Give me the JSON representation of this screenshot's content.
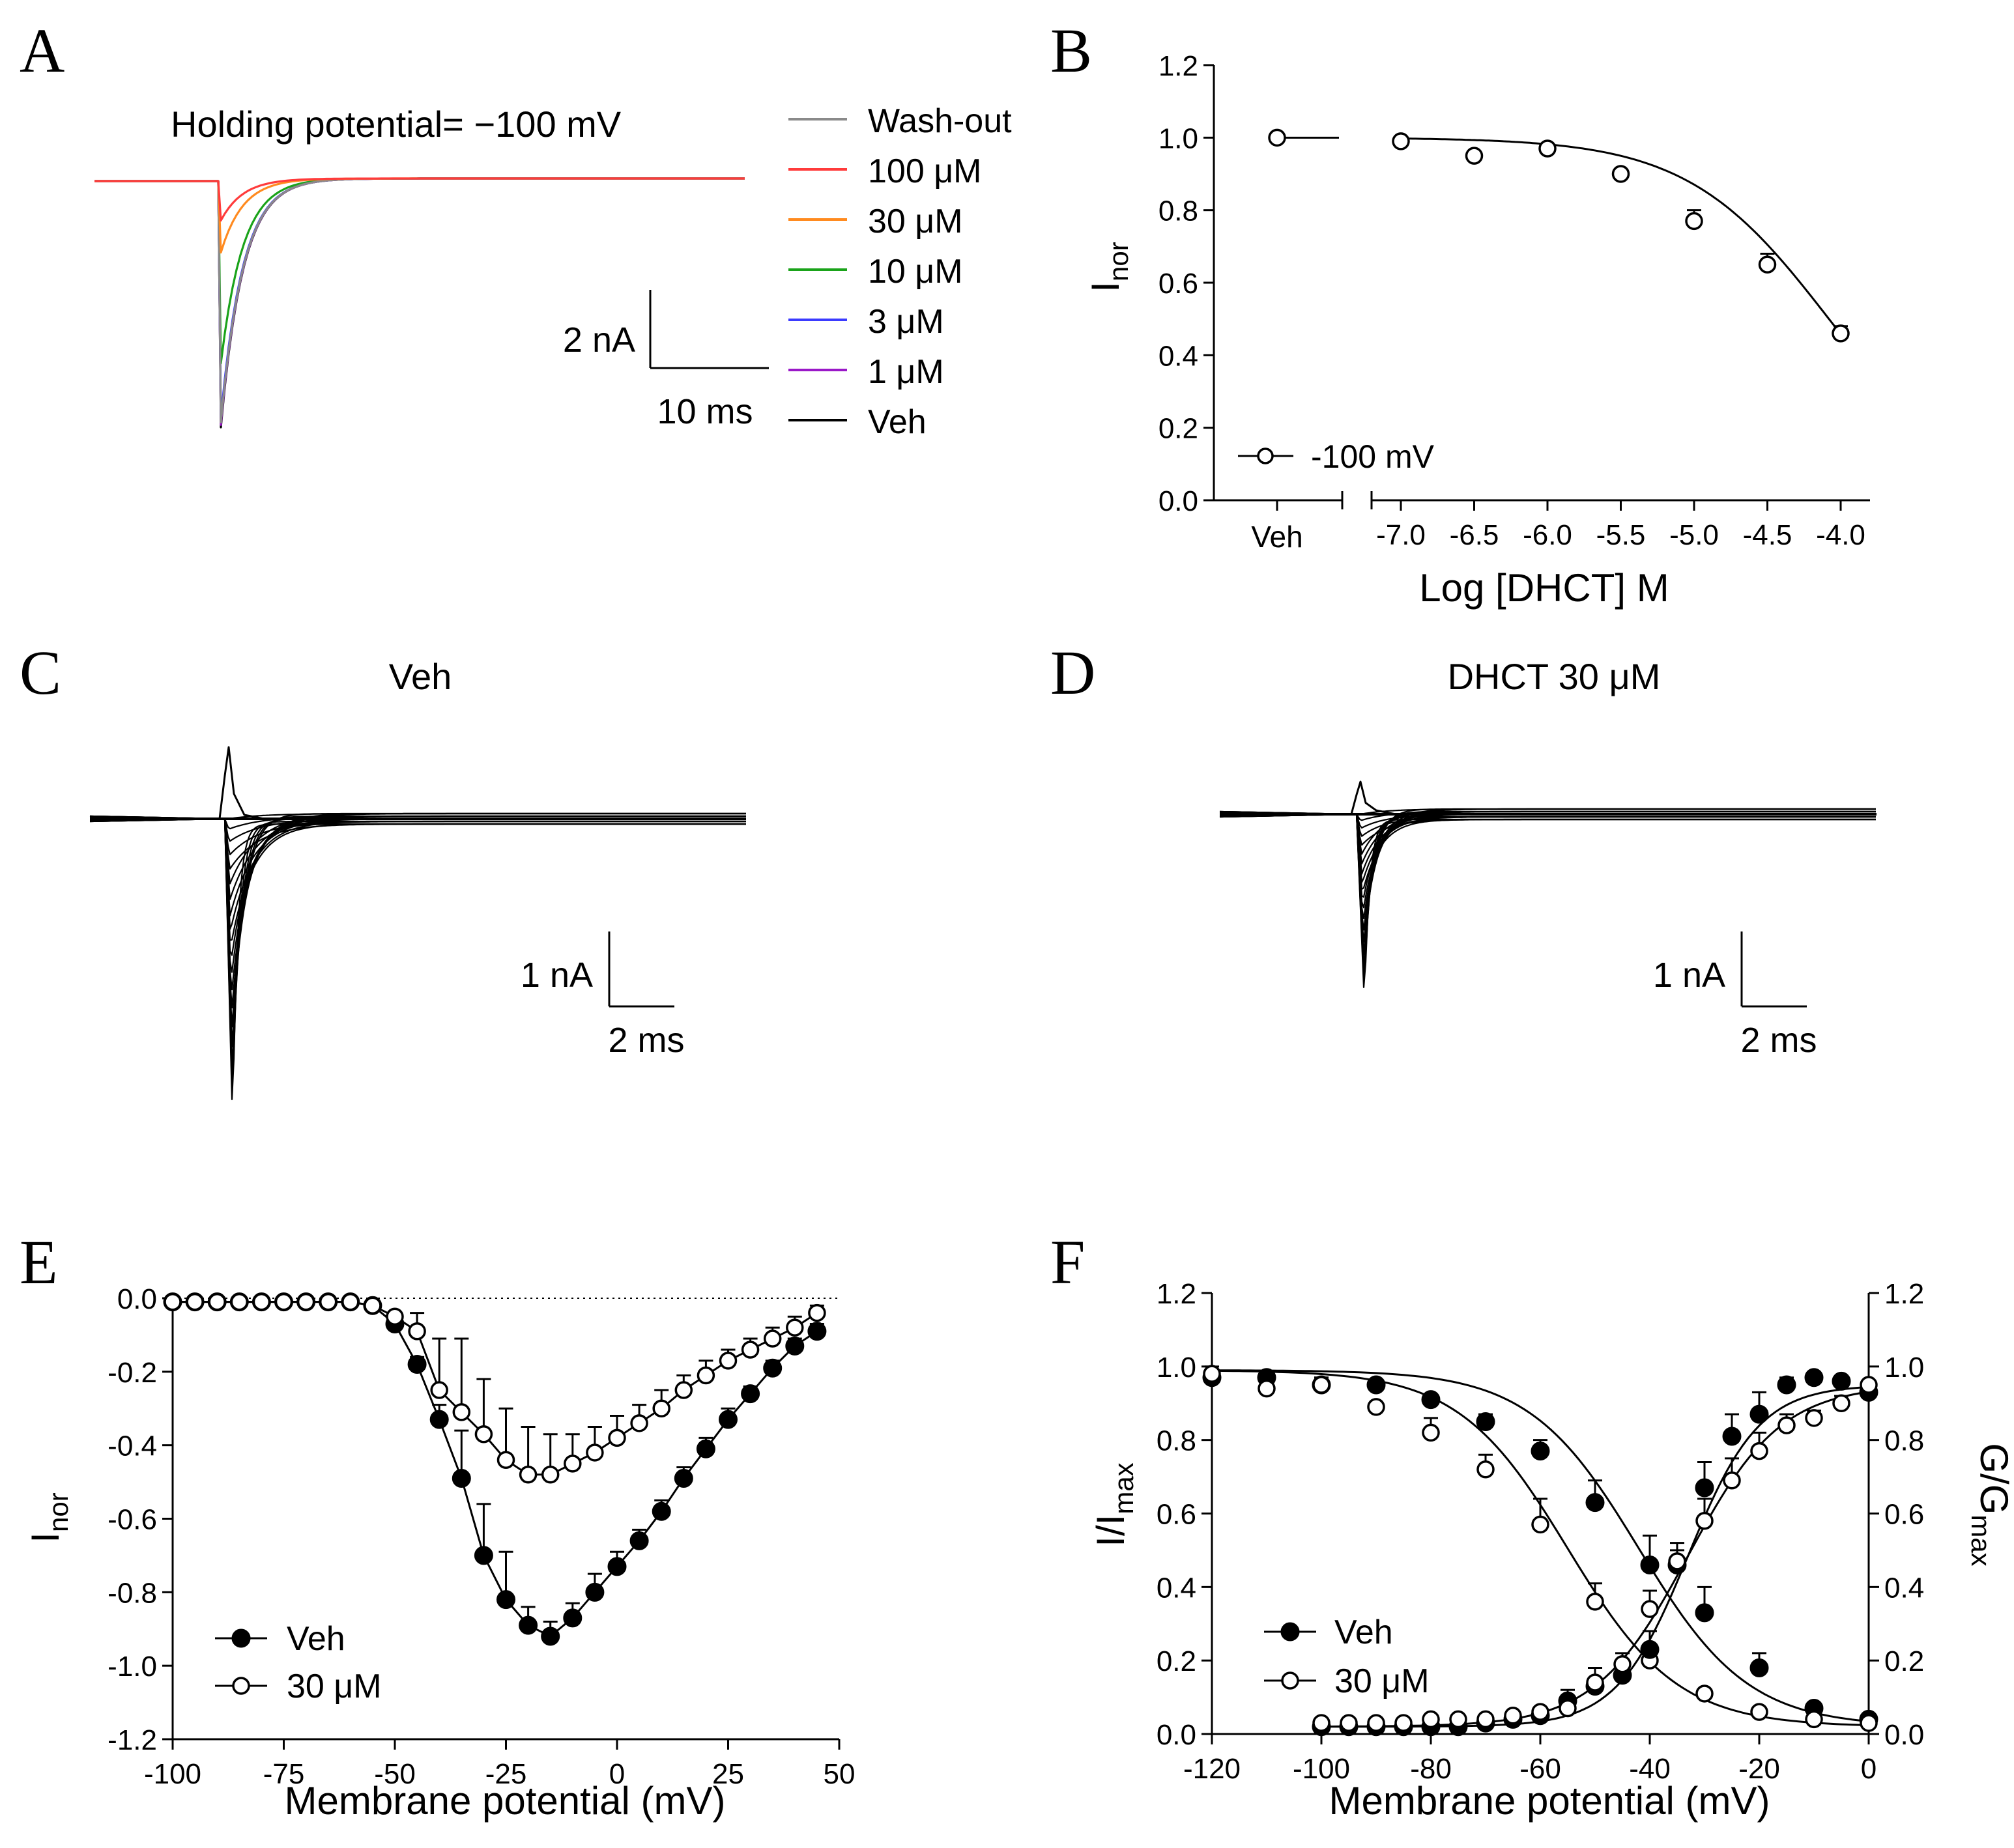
{
  "chart_data": [
    {
      "panel": "A",
      "type": "line",
      "title": "Holding potential= −100 mV",
      "series": [
        {
          "name": "Wash-out",
          "color": "#8a8a8a",
          "peak_rel": 0.98
        },
        {
          "name": "100 μM",
          "color": "#ff3b3b",
          "peak_rel": 0.16
        },
        {
          "name": "30 μM",
          "color": "#ff8a1f",
          "peak_rel": 0.29
        },
        {
          "name": "10 μM",
          "color": "#1aa31a",
          "peak_rel": 0.74
        },
        {
          "name": "3 μM",
          "color": "#3b3bff",
          "peak_rel": 0.96
        },
        {
          "name": "1 μM",
          "color": "#9a18c8",
          "peak_rel": 0.99
        },
        {
          "name": "Veh",
          "color": "#000000",
          "peak_rel": 1.0
        }
      ],
      "scale_bar": {
        "y_label": "2 nA",
        "x_label": "10 ms"
      }
    },
    {
      "panel": "B",
      "type": "scatter",
      "xlabel": "Log [DHCT] M",
      "ylabel": "I",
      "ylabel_sub": "nor",
      "ylim": [
        0.0,
        1.2
      ],
      "yticks": [
        "0.0",
        "0.2",
        "0.4",
        "0.6",
        "0.8",
        "1.0",
        "1.2"
      ],
      "xlim": [
        -7.2,
        -3.8
      ],
      "xticks": [
        "-7.0",
        "-6.5",
        "-6.0",
        "-5.5",
        "-5.0",
        "-4.5",
        "-4.0"
      ],
      "veh_label": "Veh",
      "veh_value": 1.0,
      "series": [
        {
          "name": "-100 mV",
          "x": [
            -7.0,
            -6.5,
            -6.0,
            -5.5,
            -5.0,
            -4.5,
            -4.0
          ],
          "y": [
            0.99,
            0.95,
            0.97,
            0.9,
            0.77,
            0.65,
            0.46
          ],
          "err": [
            0.0,
            0.0,
            0.0,
            0.0,
            0.03,
            0.03,
            0.02
          ]
        }
      ],
      "fit": {
        "type": "hill",
        "ic50_log": -4.08,
        "n": 0.9
      }
    },
    {
      "panel": "C",
      "type": "line",
      "title": "Veh",
      "sweeps": 20,
      "peak_nA": -4.2,
      "scale_bar": {
        "y_label": "1 nA",
        "x_label": "2 ms"
      }
    },
    {
      "panel": "D",
      "type": "line",
      "title": "DHCT 30 μM",
      "sweeps": 20,
      "peak_nA": -2.1,
      "scale_bar": {
        "y_label": "1 nA",
        "x_label": "2 ms"
      }
    },
    {
      "panel": "E",
      "type": "line",
      "xlabel": "Membrane potential (mV)",
      "ylabel": "I",
      "ylabel_sub": "nor",
      "xlim": [
        -100,
        50
      ],
      "ylim": [
        -1.2,
        0.0
      ],
      "xticks": [
        "-100",
        "-75",
        "-50",
        "-25",
        "0",
        "25",
        "50"
      ],
      "yticks": [
        "0.0",
        "-0.2",
        "-0.4",
        "-0.6",
        "-0.8",
        "-1.0",
        "-1.2"
      ],
      "x": [
        -100,
        -95,
        -90,
        -85,
        -80,
        -75,
        -70,
        -65,
        -60,
        -55,
        -50,
        -45,
        -40,
        -35,
        -30,
        -25,
        -20,
        -15,
        -10,
        -5,
        0,
        5,
        10,
        15,
        20,
        25,
        30,
        35,
        40,
        45
      ],
      "series": [
        {
          "name": "Veh",
          "marker": "filled",
          "y": [
            -0.01,
            -0.01,
            -0.01,
            -0.01,
            -0.01,
            -0.01,
            -0.01,
            -0.01,
            -0.01,
            -0.02,
            -0.07,
            -0.18,
            -0.33,
            -0.49,
            -0.7,
            -0.82,
            -0.89,
            -0.92,
            -0.87,
            -0.8,
            -0.73,
            -0.66,
            -0.58,
            -0.49,
            -0.41,
            -0.33,
            -0.26,
            -0.19,
            -0.13,
            -0.09
          ],
          "err": [
            0,
            0,
            0,
            0,
            0,
            0,
            0,
            0,
            0,
            0,
            0,
            0.02,
            0.04,
            0.13,
            0.14,
            0.13,
            0.05,
            0.04,
            0.04,
            0.05,
            0.04,
            0.03,
            0.03,
            0.03,
            0.03,
            0.03,
            0.02,
            0.02,
            0.02,
            0.02
          ]
        },
        {
          "name": "30 μM",
          "marker": "open",
          "y": [
            -0.01,
            -0.01,
            -0.01,
            -0.01,
            -0.01,
            -0.01,
            -0.01,
            -0.01,
            -0.01,
            -0.02,
            -0.05,
            -0.09,
            -0.25,
            -0.31,
            -0.37,
            -0.44,
            -0.48,
            -0.48,
            -0.45,
            -0.42,
            -0.38,
            -0.34,
            -0.3,
            -0.25,
            -0.21,
            -0.17,
            -0.14,
            -0.11,
            -0.08,
            -0.04
          ],
          "err": [
            0,
            0,
            0,
            0,
            0,
            0,
            0,
            0,
            0,
            0,
            0.01,
            0.05,
            0.14,
            0.2,
            0.15,
            0.14,
            0.13,
            0.11,
            0.08,
            0.07,
            0.06,
            0.05,
            0.05,
            0.04,
            0.04,
            0.03,
            0.03,
            0.03,
            0.03,
            0.02
          ]
        }
      ]
    },
    {
      "panel": "F",
      "type": "line",
      "xlabel": "Membrane potential (mV)",
      "ylabel_left": "I/I",
      "ylabel_left_sub": "max",
      "ylabel_right": "G/G",
      "ylabel_right_sub": "max",
      "xlim": [
        -120,
        0
      ],
      "ylim": [
        0.0,
        1.2
      ],
      "xticks": [
        "-120",
        "-100",
        "-80",
        "-60",
        "-40",
        "-20",
        "0"
      ],
      "yticks": [
        "0.0",
        "0.2",
        "0.4",
        "0.6",
        "0.8",
        "1.0",
        "1.2"
      ],
      "inactivation": {
        "x": [
          -120,
          -110,
          -100,
          -90,
          -80,
          -70,
          -60,
          -50,
          -40,
          -30,
          -20,
          -10,
          0
        ],
        "series": [
          {
            "name": "Veh",
            "marker": "filled",
            "y": [
              0.97,
              0.97,
              0.95,
              0.95,
              0.91,
              0.85,
              0.77,
              0.63,
              0.46,
              0.33,
              0.18,
              0.07,
              0.04
            ],
            "err": [
              0.03,
              0.01,
              0.02,
              0.0,
              0.0,
              0.02,
              0.03,
              0.06,
              0.08,
              0.07,
              0.04,
              0.01,
              0.0
            ],
            "fit": {
              "v_half": -42,
              "k": 10
            }
          },
          {
            "name": "30 μM",
            "marker": "open",
            "y": [
              0.98,
              0.94,
              0.95,
              0.89,
              0.82,
              0.72,
              0.57,
              0.36,
              0.2,
              0.11,
              0.06,
              0.04,
              0.03
            ],
            "err": [
              0.0,
              0.02,
              0.02,
              0.0,
              0.04,
              0.04,
              0.07,
              0.05,
              0.02,
              0.01,
              0.0,
              0.0,
              0.0
            ],
            "fit": {
              "v_half": -55,
              "k": 10
            }
          }
        ]
      },
      "activation": {
        "x": [
          -100,
          -95,
          -90,
          -85,
          -80,
          -75,
          -70,
          -65,
          -60,
          -55,
          -50,
          -45,
          -40,
          -35,
          -30,
          -25,
          -20,
          -15,
          -10,
          -5,
          0
        ],
        "series": [
          {
            "name": "Veh",
            "marker": "filled",
            "y": [
              0.02,
              0.02,
              0.02,
              0.02,
              0.02,
              0.02,
              0.03,
              0.04,
              0.05,
              0.09,
              0.13,
              0.16,
              0.23,
              0.46,
              0.67,
              0.81,
              0.87,
              0.95,
              0.97,
              0.96,
              0.93
            ],
            "err": [
              0,
              0,
              0,
              0,
              0,
              0,
              0,
              0,
              0,
              0.03,
              0.05,
              0.04,
              0.05,
              0.04,
              0.07,
              0.06,
              0.06,
              0.02,
              0.01,
              0.01,
              0.01
            ],
            "fit": {
              "v_half": -33,
              "k": 6.5
            }
          },
          {
            "name": "30 μM",
            "marker": "open",
            "y": [
              0.03,
              0.03,
              0.03,
              0.03,
              0.04,
              0.04,
              0.04,
              0.05,
              0.06,
              0.07,
              0.14,
              0.19,
              0.34,
              0.47,
              0.58,
              0.69,
              0.77,
              0.84,
              0.86,
              0.9,
              0.95
            ],
            "err": [
              0,
              0,
              0,
              0,
              0,
              0,
              0,
              0,
              0,
              0,
              0.04,
              0.03,
              0.05,
              0.05,
              0.06,
              0.06,
              0.05,
              0.03,
              0.02,
              0.02,
              0.01
            ],
            "fit": {
              "v_half": -33,
              "k": 8.5
            }
          }
        ]
      }
    }
  ]
}
